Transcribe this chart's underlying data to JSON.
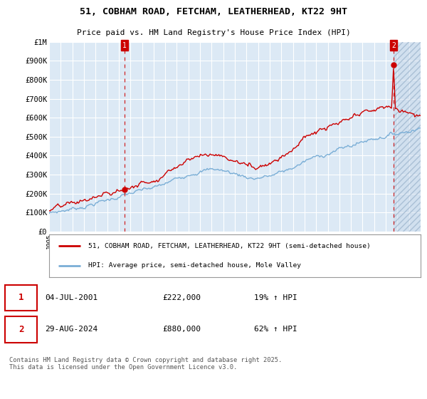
{
  "title": "51, COBHAM ROAD, FETCHAM, LEATHERHEAD, KT22 9HT",
  "subtitle": "Price paid vs. HM Land Registry's House Price Index (HPI)",
  "bg_color": "#dce9f5",
  "grid_color": "#ffffff",
  "red_line_color": "#cc0000",
  "blue_line_color": "#7aaed6",
  "marker_color": "#cc0000",
  "annotation_box_color": "#cc0000",
  "dashed_line_color": "#cc0000",
  "hatch_color": "#c8d8eb",
  "x_start_year": 1995,
  "x_end_year": 2027,
  "y_min": 0,
  "y_max": 1000000,
  "y_ticks": [
    0,
    100000,
    200000,
    300000,
    400000,
    500000,
    600000,
    700000,
    800000,
    900000,
    1000000
  ],
  "y_tick_labels": [
    "£0",
    "£100K",
    "£200K",
    "£300K",
    "£400K",
    "£500K",
    "£600K",
    "£700K",
    "£800K",
    "£900K",
    "£1M"
  ],
  "marker1_year": 2001.5,
  "marker1_value": 222000,
  "marker1_label": "1",
  "marker1_date": "04-JUL-2001",
  "marker1_price": "£222,000",
  "marker1_hpi": "19% ↑ HPI",
  "marker2_year": 2024.67,
  "marker2_value": 880000,
  "marker2_label": "2",
  "marker2_date": "29-AUG-2024",
  "marker2_price": "£880,000",
  "marker2_hpi": "62% ↑ HPI",
  "legend_line1": "51, COBHAM ROAD, FETCHAM, LEATHERHEAD, KT22 9HT (semi-detached house)",
  "legend_line2": "HPI: Average price, semi-detached house, Mole Valley",
  "footer": "Contains HM Land Registry data © Crown copyright and database right 2025.\nThis data is licensed under the Open Government Licence v3.0."
}
